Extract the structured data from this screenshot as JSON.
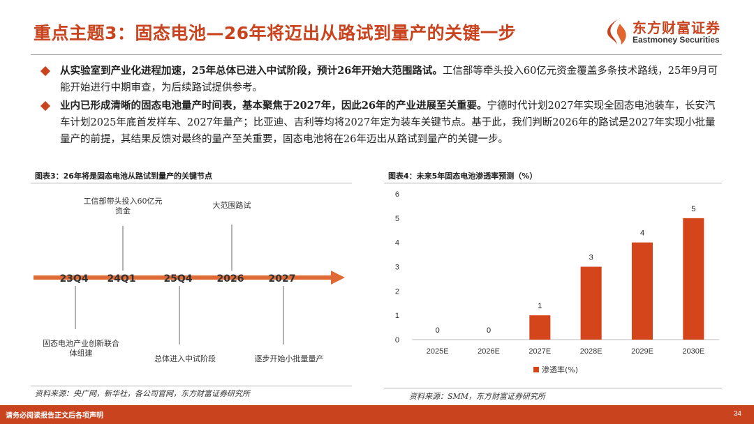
{
  "header": {
    "title": "重点主题3：固态电池—26年将迈出从路试到量产的关键一步",
    "logo_cn": "东方财富证券",
    "logo_en": "Eastmoney Securities",
    "logo_icon": "eastmoney-flame-icon",
    "brand_color": "#c8431e"
  },
  "bullets": [
    {
      "bold": "从实验室到产业化进程加速，25年总体已进入中试阶段，预计26年开始大范围路试。",
      "text": "工信部等牵头投入60亿元资金覆盖多条技术路线，25年9月可能开始进行中期审查，为后续路试提供参考。"
    },
    {
      "bold": "业内已形成清晰的固态电池量产时间表，基本聚焦于2027年，因此26年的产业进展至关重要。",
      "text": "宁德时代计划2027年实现全固态电池装车，长安汽车计划2025年底首发样车、2027年量产；比亚迪、吉利等均将2027年定为装车关键节点。基于此，我们判断2026年的路试是2027年实现小批量量产的前提，其结果反馈对最终的量产至关重要，固态电池将在26年迈出从路试到量产的关键一步。"
    }
  ],
  "figure3": {
    "title": "图表3：26年将是固态电池从路试到量产的关键节点",
    "source": "资料来源：央广网，新华社，各公司官网，东方财富证券研究所",
    "nodes": [
      {
        "label": "23Q4",
        "note": [
          "固态电池产业创新联合",
          "体组建"
        ],
        "side": "below"
      },
      {
        "label": "24Q1",
        "note": [
          "工信部带头投入60亿元",
          "资金"
        ],
        "side": "above"
      },
      {
        "label": "25Q4",
        "note": [
          "总体进入中试阶段"
        ],
        "side": "below"
      },
      {
        "label": "2026",
        "note": [
          "大范围路试"
        ],
        "side": "above"
      },
      {
        "label": "2027",
        "note": [
          "逐步开始小批量量产"
        ],
        "side": "below"
      }
    ]
  },
  "figure4": {
    "title": "图表4：未来5年固态电池渗透率预测（%）",
    "source": "资料来源：SMM，东方财富证券研究所"
  },
  "chart_data": {
    "type": "bar",
    "categories": [
      "2025E",
      "2026E",
      "2027E",
      "2028E",
      "2029E",
      "2030E"
    ],
    "series": [
      {
        "name": "渗透率(%)",
        "values": [
          0,
          0,
          1,
          3,
          4,
          5
        ]
      }
    ],
    "ylim": [
      0,
      6
    ],
    "yticks": [
      0,
      1,
      2,
      3,
      4,
      5,
      6
    ],
    "legend": "bottom-left",
    "grid": false,
    "bar_color": "#d5451c"
  },
  "footer": {
    "disclaimer": "请务必阅读报告正文后各项声明",
    "page": "34"
  }
}
